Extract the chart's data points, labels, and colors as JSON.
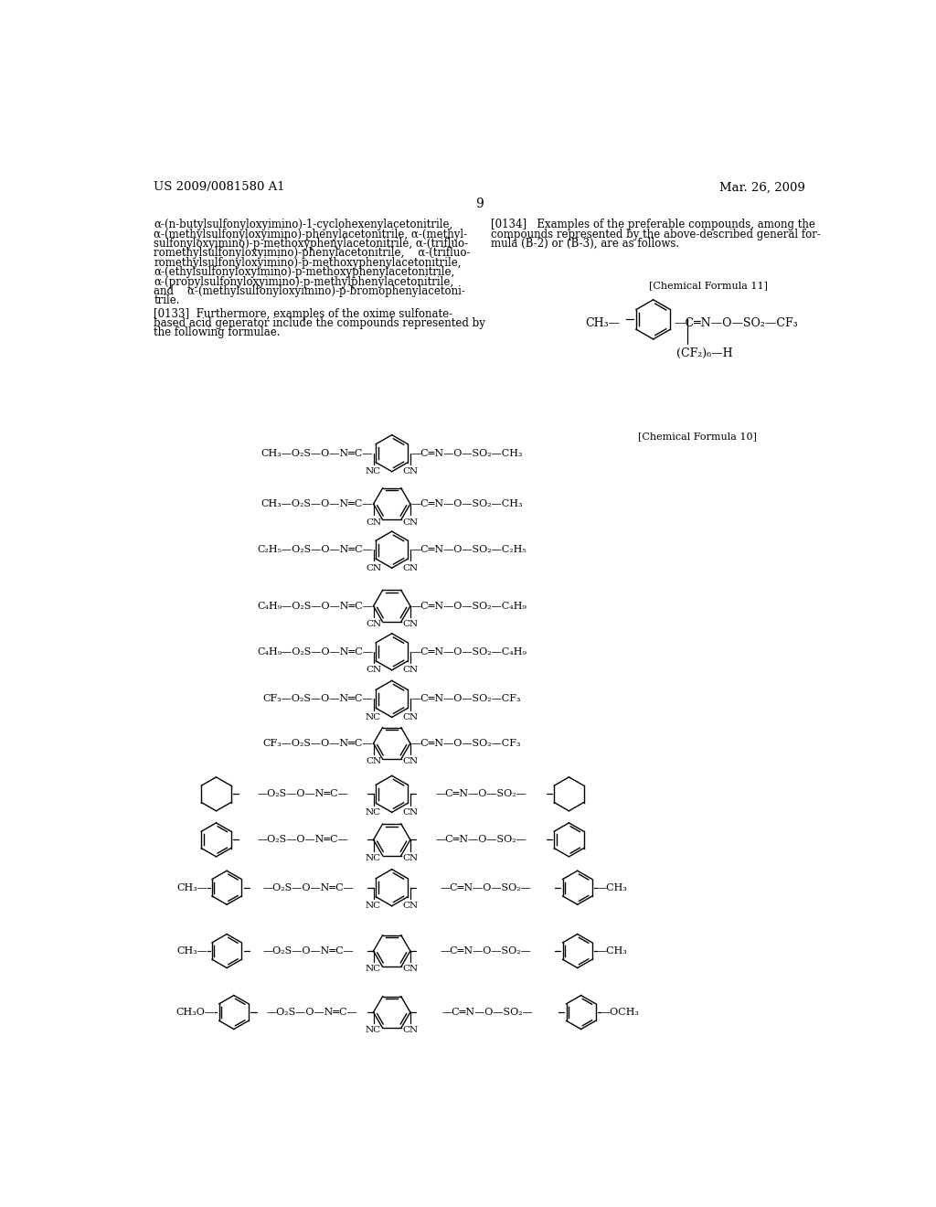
{
  "background_color": "#ffffff",
  "header_left": "US 2009/0081580 A1",
  "header_right": "Mar. 26, 2009",
  "page_number": "9",
  "left_text_lines": [
    "α-(n-butylsulfonyloxyimino)-1-cyclohexenylacetonitrile,",
    "α-(methylsulfonyloxyimino)-phenylacetonitrile, α-(methyl-",
    "sulfonyloxyimino)-p-methoxyphenylacetonitrile, α-(trifluo-",
    "romethylsulfonyloxyimino)-phenylacetonitrile,    α-(trifluo-",
    "romethylsulfonyloxyimino)-p-methoxyphenylacetonitrile,",
    "α-(ethylsulfonyloxyimino)-p-methoxyphenylacetonitrile,",
    "α-(propylsulfonyloxyimino)-p-methylphenylacetonitrile,",
    "and    α-(methylsulfonyloxyimino)-p-bromophenylacetoni-",
    "trile."
  ],
  "para_0133_lines": [
    "[0133]  Furthermore, examples of the oxime sulfonate-",
    "based acid generator include the compounds represented by",
    "the following formulae."
  ],
  "right_text_lines": [
    "[0134]   Examples of the preferable compounds, among the",
    "compounds represented by the above-described general for-",
    "mula (B-2) or (B-3), are as follows."
  ],
  "chem_formula_11_label": "[Chemical Formula 11]",
  "chem_formula_10_label": "[Chemical Formula 10]"
}
